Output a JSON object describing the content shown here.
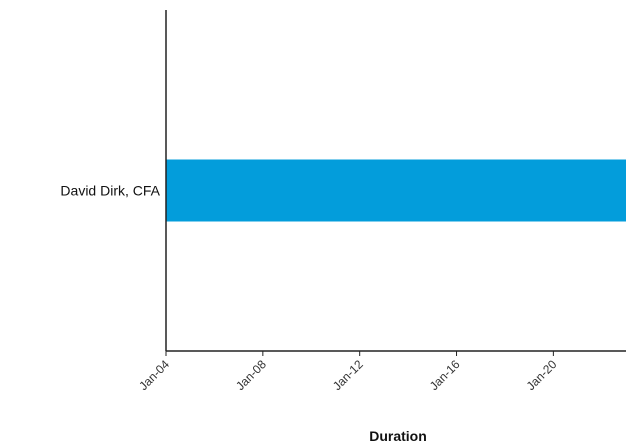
{
  "chart_data": {
    "type": "bar",
    "orientation": "horizontal",
    "title": "",
    "xlabel": "Duration",
    "ylabel": "",
    "categories": [
      "David Dirk, CFA"
    ],
    "series": [
      {
        "values": [
          {
            "start": "Jan-04",
            "end": "Jan-23"
          }
        ]
      }
    ],
    "x_ticks": [
      "Jan-04",
      "Jan-08",
      "Jan-12",
      "Jan-16",
      "Jan-20"
    ],
    "xlim": [
      "Jan-04",
      "Jan-23"
    ],
    "grid": false,
    "legend": "none",
    "bar_color": "#039ddb"
  }
}
